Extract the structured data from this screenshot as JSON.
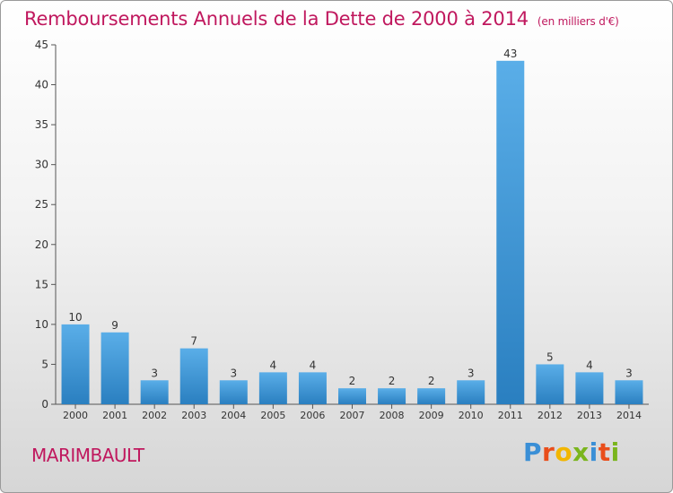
{
  "title": "Remboursements Annuels de la Dette de 2000 à 2014",
  "unit": "(en milliers d'€)",
  "commune": "MARIMBAULT",
  "logo": {
    "text": "Proxiti",
    "colors": [
      "#3a8fd6",
      "#e94e1b",
      "#f2b600",
      "#7ab51d",
      "#3a8fd6",
      "#e94e1b",
      "#7ab51d"
    ]
  },
  "colors": {
    "bar_light": "#5aaee8",
    "bar_dark": "#2a7fc0",
    "accent": "#c0185e"
  },
  "chart_data": {
    "type": "bar",
    "categories": [
      "2000",
      "2001",
      "2002",
      "2003",
      "2004",
      "2005",
      "2006",
      "2007",
      "2008",
      "2009",
      "2010",
      "2011",
      "2012",
      "2013",
      "2014"
    ],
    "values": [
      10,
      9,
      3,
      7,
      3,
      4,
      4,
      2,
      2,
      2,
      3,
      43,
      5,
      4,
      3
    ],
    "yticks": [
      0,
      5,
      10,
      15,
      20,
      25,
      30,
      35,
      40,
      45
    ],
    "ylim": [
      0,
      45
    ],
    "xlabel": "",
    "ylabel": "",
    "grid": false,
    "data_labels": true
  }
}
